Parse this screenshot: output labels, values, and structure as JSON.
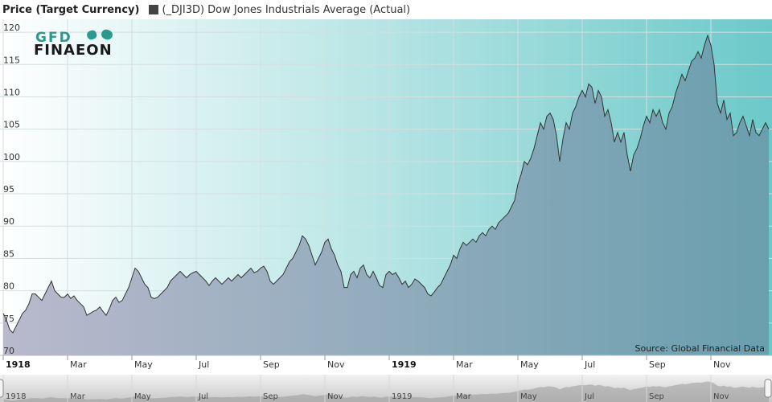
{
  "legend": {
    "ylabel": "Price (Target Currency)",
    "series_label": "(_DJI3D) Dow Jones Industrials Average (Actual)"
  },
  "logo": {
    "text_top": "GFD",
    "text_bottom": "FINAEON"
  },
  "source": "Source: Global Financial Data",
  "colors": {
    "bg_left": "#ffffff",
    "bg_right": "#6cc9c9",
    "area_left": "#b9b9cc",
    "area_right": "#6a9fae",
    "line": "#333333",
    "grid": "#d4dee0",
    "logo_dark": "#1a1a1a",
    "logo_teal": "#2a9a8f"
  },
  "chart_data": {
    "type": "area",
    "ylim": [
      70,
      122
    ],
    "yticks": [
      70,
      75,
      80,
      85,
      90,
      95,
      100,
      105,
      110,
      115,
      120
    ],
    "xaxis_labels": [
      {
        "t": 0.0,
        "label": "1918",
        "major": true
      },
      {
        "t": 2.0,
        "label": "Mar",
        "major": false
      },
      {
        "t": 4.0,
        "label": "May",
        "major": false
      },
      {
        "t": 6.0,
        "label": "Jul",
        "major": false
      },
      {
        "t": 8.0,
        "label": "Sep",
        "major": false
      },
      {
        "t": 10.0,
        "label": "Nov",
        "major": false
      },
      {
        "t": 12.0,
        "label": "1919",
        "major": true
      },
      {
        "t": 14.0,
        "label": "Mar",
        "major": false
      },
      {
        "t": 16.0,
        "label": "May",
        "major": false
      },
      {
        "t": 18.0,
        "label": "Jul",
        "major": false
      },
      {
        "t": 20.0,
        "label": "Sep",
        "major": false
      },
      {
        "t": 22.0,
        "label": "Nov",
        "major": false
      }
    ],
    "xlim": [
      0.0,
      23.8
    ],
    "series": [
      {
        "points": [
          [
            0.0,
            76.5
          ],
          [
            0.1,
            75.5
          ],
          [
            0.2,
            74
          ],
          [
            0.3,
            73.5
          ],
          [
            0.4,
            74.5
          ],
          [
            0.5,
            75.5
          ],
          [
            0.6,
            76.5
          ],
          [
            0.7,
            77
          ],
          [
            0.8,
            78
          ],
          [
            0.9,
            79.5
          ],
          [
            1.0,
            79.5
          ],
          [
            1.1,
            79
          ],
          [
            1.2,
            78.5
          ],
          [
            1.3,
            79.5
          ],
          [
            1.4,
            80.5
          ],
          [
            1.5,
            81.5
          ],
          [
            1.6,
            80
          ],
          [
            1.7,
            79.5
          ],
          [
            1.8,
            79
          ],
          [
            1.9,
            79
          ],
          [
            2.0,
            79.5
          ],
          [
            2.1,
            78.8
          ],
          [
            2.2,
            79.2
          ],
          [
            2.3,
            78.5
          ],
          [
            2.4,
            78
          ],
          [
            2.5,
            77.5
          ],
          [
            2.6,
            76.2
          ],
          [
            2.7,
            76.5
          ],
          [
            2.8,
            76.8
          ],
          [
            2.9,
            77
          ],
          [
            3.0,
            77.5
          ],
          [
            3.1,
            76.8
          ],
          [
            3.2,
            76.2
          ],
          [
            3.3,
            77.2
          ],
          [
            3.4,
            78.5
          ],
          [
            3.5,
            79
          ],
          [
            3.6,
            78.2
          ],
          [
            3.7,
            78.5
          ],
          [
            3.8,
            79.5
          ],
          [
            3.9,
            80.5
          ],
          [
            4.0,
            82
          ],
          [
            4.1,
            83.5
          ],
          [
            4.2,
            83
          ],
          [
            4.3,
            82
          ],
          [
            4.4,
            81
          ],
          [
            4.5,
            80.5
          ],
          [
            4.6,
            79
          ],
          [
            4.7,
            78.8
          ],
          [
            4.8,
            79
          ],
          [
            4.9,
            79.5
          ],
          [
            5.0,
            80
          ],
          [
            5.1,
            80.5
          ],
          [
            5.2,
            81.5
          ],
          [
            5.3,
            82
          ],
          [
            5.4,
            82.5
          ],
          [
            5.5,
            83
          ],
          [
            5.6,
            82.5
          ],
          [
            5.7,
            82
          ],
          [
            5.8,
            82.5
          ],
          [
            5.9,
            82.8
          ],
          [
            6.0,
            83
          ],
          [
            6.1,
            82.5
          ],
          [
            6.2,
            82
          ],
          [
            6.3,
            81.5
          ],
          [
            6.4,
            80.8
          ],
          [
            6.5,
            81.5
          ],
          [
            6.6,
            82
          ],
          [
            6.7,
            81.5
          ],
          [
            6.8,
            81
          ],
          [
            6.9,
            81.5
          ],
          [
            7.0,
            82
          ],
          [
            7.1,
            81.5
          ],
          [
            7.2,
            82
          ],
          [
            7.3,
            82.5
          ],
          [
            7.4,
            82
          ],
          [
            7.5,
            82.5
          ],
          [
            7.6,
            83
          ],
          [
            7.7,
            83.5
          ],
          [
            7.8,
            82.8
          ],
          [
            7.9,
            83
          ],
          [
            8.0,
            83.5
          ],
          [
            8.1,
            83.8
          ],
          [
            8.2,
            83
          ],
          [
            8.3,
            81.5
          ],
          [
            8.4,
            81
          ],
          [
            8.5,
            81.5
          ],
          [
            8.6,
            82
          ],
          [
            8.7,
            82.5
          ],
          [
            8.8,
            83.5
          ],
          [
            8.9,
            84.5
          ],
          [
            9.0,
            85
          ],
          [
            9.1,
            86
          ],
          [
            9.2,
            87
          ],
          [
            9.3,
            88.5
          ],
          [
            9.4,
            88
          ],
          [
            9.5,
            87
          ],
          [
            9.6,
            85.5
          ],
          [
            9.7,
            84
          ],
          [
            9.8,
            85
          ],
          [
            9.9,
            86
          ],
          [
            10.0,
            87.5
          ],
          [
            10.1,
            88
          ],
          [
            10.2,
            86.5
          ],
          [
            10.3,
            85.5
          ],
          [
            10.4,
            84
          ],
          [
            10.5,
            83
          ],
          [
            10.6,
            80.5
          ],
          [
            10.7,
            80.5
          ],
          [
            10.8,
            82.5
          ],
          [
            10.9,
            83
          ],
          [
            11.0,
            82
          ],
          [
            11.1,
            83.5
          ],
          [
            11.2,
            84
          ],
          [
            11.3,
            82.5
          ],
          [
            11.4,
            82
          ],
          [
            11.5,
            83
          ],
          [
            11.6,
            82
          ],
          [
            11.7,
            80.8
          ],
          [
            11.8,
            80.5
          ],
          [
            11.9,
            82.5
          ],
          [
            12.0,
            83
          ],
          [
            12.1,
            82.5
          ],
          [
            12.2,
            82.8
          ],
          [
            12.3,
            82
          ],
          [
            12.4,
            81
          ],
          [
            12.5,
            81.5
          ],
          [
            12.6,
            80.5
          ],
          [
            12.7,
            81
          ],
          [
            12.8,
            81.8
          ],
          [
            12.9,
            81.5
          ],
          [
            13.0,
            81
          ],
          [
            13.1,
            80.5
          ],
          [
            13.2,
            79.5
          ],
          [
            13.3,
            79.2
          ],
          [
            13.4,
            79.8
          ],
          [
            13.5,
            80.5
          ],
          [
            13.6,
            81
          ],
          [
            13.7,
            82
          ],
          [
            13.8,
            83
          ],
          [
            13.9,
            84
          ],
          [
            14.0,
            85.5
          ],
          [
            14.1,
            85
          ],
          [
            14.2,
            86.5
          ],
          [
            14.3,
            87.5
          ],
          [
            14.4,
            87
          ],
          [
            14.5,
            87.5
          ],
          [
            14.6,
            88
          ],
          [
            14.7,
            87.5
          ],
          [
            14.8,
            88.5
          ],
          [
            14.9,
            89
          ],
          [
            15.0,
            88.5
          ],
          [
            15.1,
            89.5
          ],
          [
            15.2,
            90
          ],
          [
            15.3,
            89.5
          ],
          [
            15.4,
            90.5
          ],
          [
            15.5,
            91
          ],
          [
            15.6,
            91.5
          ],
          [
            15.7,
            92
          ],
          [
            15.8,
            93
          ],
          [
            15.9,
            94
          ],
          [
            16.0,
            96.5
          ],
          [
            16.1,
            98
          ],
          [
            16.2,
            100
          ],
          [
            16.3,
            99.5
          ],
          [
            16.4,
            100.5
          ],
          [
            16.5,
            102
          ],
          [
            16.6,
            104
          ],
          [
            16.7,
            106
          ],
          [
            16.8,
            105
          ],
          [
            16.9,
            107
          ],
          [
            17.0,
            107.5
          ],
          [
            17.1,
            106.5
          ],
          [
            17.2,
            104
          ],
          [
            17.3,
            100
          ],
          [
            17.4,
            103.5
          ],
          [
            17.5,
            106
          ],
          [
            17.6,
            105
          ],
          [
            17.7,
            107.5
          ],
          [
            17.8,
            108.5
          ],
          [
            17.9,
            110
          ],
          [
            18.0,
            111
          ],
          [
            18.1,
            110
          ],
          [
            18.2,
            112
          ],
          [
            18.3,
            111.5
          ],
          [
            18.4,
            109
          ],
          [
            18.5,
            111
          ],
          [
            18.6,
            110
          ],
          [
            18.7,
            107
          ],
          [
            18.8,
            108
          ],
          [
            18.9,
            106
          ],
          [
            19.0,
            103
          ],
          [
            19.1,
            104.5
          ],
          [
            19.2,
            103
          ],
          [
            19.3,
            104.5
          ],
          [
            19.4,
            101
          ],
          [
            19.5,
            98.5
          ],
          [
            19.6,
            101
          ],
          [
            19.7,
            102
          ],
          [
            19.8,
            103.5
          ],
          [
            19.9,
            105.5
          ],
          [
            20.0,
            107
          ],
          [
            20.1,
            106
          ],
          [
            20.2,
            108
          ],
          [
            20.3,
            107
          ],
          [
            20.4,
            108
          ],
          [
            20.5,
            106
          ],
          [
            20.6,
            105
          ],
          [
            20.7,
            107.5
          ],
          [
            20.8,
            108.5
          ],
          [
            20.9,
            110.5
          ],
          [
            21.0,
            112
          ],
          [
            21.1,
            113.5
          ],
          [
            21.2,
            112.5
          ],
          [
            21.3,
            114
          ],
          [
            21.4,
            115.5
          ],
          [
            21.5,
            116
          ],
          [
            21.6,
            117
          ],
          [
            21.7,
            116
          ],
          [
            21.8,
            118
          ],
          [
            21.9,
            119.5
          ],
          [
            22.0,
            118
          ],
          [
            22.1,
            115
          ],
          [
            22.2,
            109
          ],
          [
            22.3,
            107.5
          ],
          [
            22.4,
            109.5
          ],
          [
            22.5,
            106.5
          ],
          [
            22.6,
            107.5
          ],
          [
            22.7,
            104
          ],
          [
            22.8,
            104.5
          ],
          [
            22.9,
            106
          ],
          [
            23.0,
            107
          ],
          [
            23.1,
            105.5
          ],
          [
            23.2,
            104
          ],
          [
            23.3,
            106.5
          ],
          [
            23.4,
            104.5
          ],
          [
            23.5,
            104
          ],
          [
            23.6,
            105
          ],
          [
            23.7,
            106
          ],
          [
            23.8,
            105
          ]
        ]
      }
    ]
  }
}
